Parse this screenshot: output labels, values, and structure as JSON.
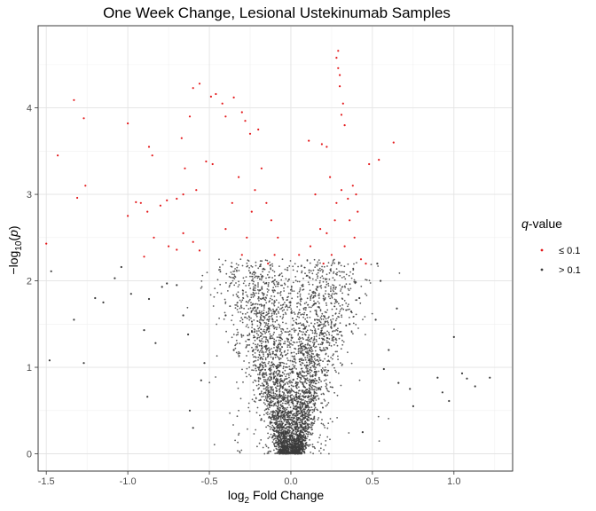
{
  "chart_data": {
    "type": "scatter",
    "title": "One Week Change, Lesional Ustekinumab Samples",
    "xlabel": {
      "base": "log",
      "sub": "2",
      "rest": " Fold Change"
    },
    "ylabel": {
      "prefix": "−log",
      "sub": "10",
      "open": "(",
      "var": "p",
      "close": ")"
    },
    "xlim": [
      -1.55,
      1.36
    ],
    "ylim": [
      -0.2,
      4.95
    ],
    "x_ticks": [
      -1.5,
      -1.0,
      -0.5,
      0.0,
      0.5,
      1.0
    ],
    "x_tick_labels": [
      "-1.5",
      "-1.0",
      "-0.5",
      "0.0",
      "0.5",
      "1.0"
    ],
    "y_ticks": [
      0,
      1,
      2,
      3,
      4
    ],
    "y_tick_labels": [
      "0",
      "1",
      "2",
      "3",
      "4"
    ],
    "grid": true,
    "legend": {
      "position": "right",
      "title_var": "q",
      "title_rest": "-value",
      "entries": [
        "≤ 0.1",
        "> 0.1"
      ]
    },
    "colors": {
      "significant": "#e41a1c",
      "not_significant": "#3c3c3c"
    },
    "series": [
      {
        "name": "≤ 0.1",
        "points": [
          [
            0.29,
            4.66
          ],
          [
            0.28,
            4.58
          ],
          [
            0.29,
            4.46
          ],
          [
            0.3,
            4.38
          ],
          [
            0.3,
            4.25
          ],
          [
            0.32,
            4.05
          ],
          [
            0.31,
            3.92
          ],
          [
            0.33,
            3.8
          ],
          [
            -0.56,
            4.28
          ],
          [
            -0.6,
            4.23
          ],
          [
            -0.49,
            4.13
          ],
          [
            -0.46,
            4.16
          ],
          [
            -0.35,
            4.12
          ],
          [
            -0.42,
            4.05
          ],
          [
            -0.4,
            3.9
          ],
          [
            -0.3,
            3.95
          ],
          [
            -0.28,
            3.85
          ],
          [
            -0.25,
            3.7
          ],
          [
            -0.2,
            3.75
          ],
          [
            -1.33,
            4.09
          ],
          [
            -1.27,
            3.88
          ],
          [
            -1.0,
            3.82
          ],
          [
            -0.62,
            3.9
          ],
          [
            -0.67,
            3.65
          ],
          [
            0.63,
            3.6
          ],
          [
            -1.43,
            3.45
          ],
          [
            -0.87,
            3.55
          ],
          [
            -0.85,
            3.45
          ],
          [
            -0.65,
            3.3
          ],
          [
            0.54,
            3.4
          ],
          [
            0.48,
            3.35
          ],
          [
            0.11,
            3.62
          ],
          [
            0.19,
            3.58
          ],
          [
            0.22,
            3.55
          ],
          [
            -0.52,
            3.38
          ],
          [
            -0.48,
            3.35
          ],
          [
            -1.26,
            3.1
          ],
          [
            -1.31,
            2.96
          ],
          [
            -0.95,
            2.91
          ],
          [
            -0.92,
            2.9
          ],
          [
            -1.0,
            2.75
          ],
          [
            -0.88,
            2.8
          ],
          [
            -0.8,
            2.87
          ],
          [
            -0.76,
            2.93
          ],
          [
            -0.7,
            2.95
          ],
          [
            -0.66,
            3.0
          ],
          [
            -0.58,
            3.05
          ],
          [
            -0.84,
            2.5
          ],
          [
            -0.75,
            2.4
          ],
          [
            -0.7,
            2.36
          ],
          [
            -0.66,
            2.55
          ],
          [
            -0.6,
            2.45
          ],
          [
            -0.56,
            2.35
          ],
          [
            -0.9,
            2.28
          ],
          [
            -1.5,
            2.43
          ],
          [
            0.46,
            2.2
          ],
          [
            0.43,
            2.25
          ],
          [
            0.41,
            2.8
          ],
          [
            0.4,
            3.0
          ],
          [
            0.38,
            3.1
          ],
          [
            0.36,
            2.7
          ],
          [
            0.39,
            2.5
          ],
          [
            0.05,
            2.3
          ],
          [
            0.12,
            2.4
          ],
          [
            0.18,
            2.6
          ],
          [
            -0.14,
            2.2
          ],
          [
            -0.1,
            2.3
          ],
          [
            -0.08,
            2.5
          ],
          [
            -0.12,
            2.7
          ],
          [
            -0.4,
            2.6
          ],
          [
            -0.36,
            2.9
          ],
          [
            -0.32,
            3.2
          ],
          [
            -0.3,
            2.3
          ],
          [
            -0.27,
            2.5
          ],
          [
            -0.24,
            2.8
          ],
          [
            -0.22,
            3.05
          ],
          [
            -0.18,
            3.3
          ],
          [
            -0.15,
            2.9
          ],
          [
            0.25,
            2.3
          ],
          [
            0.27,
            2.7
          ],
          [
            0.31,
            3.05
          ],
          [
            0.33,
            2.4
          ],
          [
            0.35,
            2.95
          ],
          [
            0.15,
            3.0
          ],
          [
            0.2,
            2.2
          ],
          [
            0.22,
            2.55
          ],
          [
            0.24,
            3.2
          ],
          [
            0.28,
            2.9
          ]
        ]
      },
      {
        "name": "> 0.1",
        "points": [
          [
            -1.47,
            2.11
          ],
          [
            -1.27,
            1.05
          ],
          [
            -1.48,
            1.08
          ],
          [
            -1.33,
            1.55
          ],
          [
            -1.2,
            1.8
          ],
          [
            -1.15,
            1.75
          ],
          [
            -1.08,
            2.03
          ],
          [
            -1.04,
            2.16
          ],
          [
            -0.98,
            1.85
          ],
          [
            -0.87,
            1.79
          ],
          [
            -0.9,
            1.43
          ],
          [
            -0.88,
            0.66
          ],
          [
            -0.83,
            1.28
          ],
          [
            -0.79,
            1.93
          ],
          [
            -0.76,
            1.97
          ],
          [
            -0.7,
            1.95
          ],
          [
            -0.66,
            1.6
          ],
          [
            -0.63,
            1.38
          ],
          [
            -0.62,
            0.5
          ],
          [
            -0.6,
            0.3
          ],
          [
            -0.55,
            0.85
          ],
          [
            -0.53,
            1.05
          ],
          [
            1.0,
            1.35
          ],
          [
            1.05,
            0.93
          ],
          [
            1.08,
            0.87
          ],
          [
            0.9,
            0.88
          ],
          [
            0.93,
            0.71
          ],
          [
            0.97,
            0.61
          ],
          [
            1.22,
            0.88
          ],
          [
            1.13,
            0.78
          ],
          [
            0.65,
            1.68
          ],
          [
            0.73,
            0.75
          ],
          [
            0.75,
            0.55
          ],
          [
            0.66,
            0.82
          ],
          [
            0.6,
            1.2
          ],
          [
            0.57,
            0.98
          ],
          [
            0.55,
            2.0
          ],
          [
            0.53,
            2.2
          ],
          [
            0.44,
            0.25
          ],
          [
            0.52,
            1.55
          ],
          [
            -0.4,
            1.6
          ],
          [
            -0.35,
            1.2
          ],
          [
            0.36,
            1.5
          ],
          [
            0.42,
            1.8
          ]
        ]
      }
    ],
    "cloud_note_count": 0
  }
}
